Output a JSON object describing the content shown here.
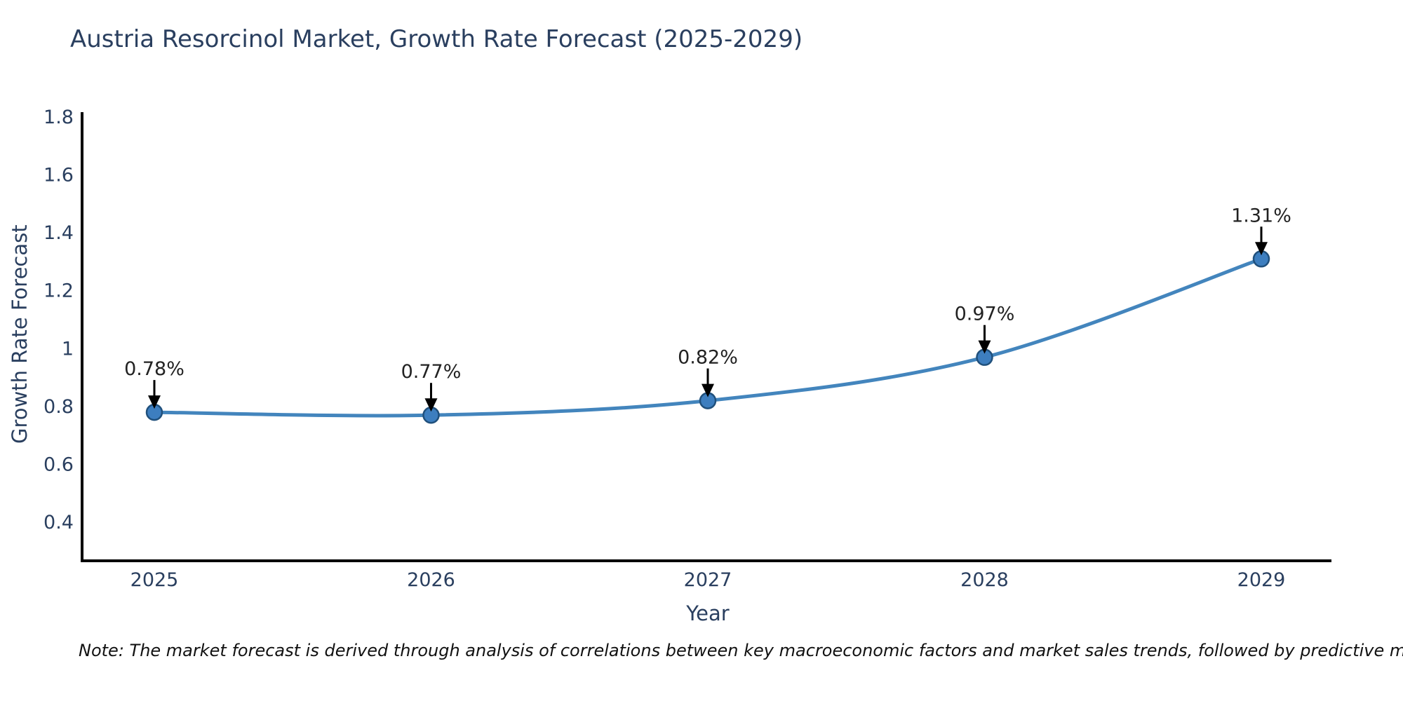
{
  "title": "Austria Resorcinol Market, Growth Rate Forecast (2025-2029)",
  "note": "Note: The market forecast is derived through analysis of correlations between key macroeconomic factors and market sales trends, followed by predictive modeling to project future sales",
  "chart_data": {
    "type": "line",
    "title": "Austria Resorcinol Market, Growth Rate Forecast (2025-2029)",
    "xlabel": "Year",
    "ylabel": "Growth Rate Forecast",
    "categories": [
      "2025",
      "2026",
      "2027",
      "2028",
      "2029"
    ],
    "series": [
      {
        "name": "Growth Rate Forecast",
        "values": [
          0.78,
          0.77,
          0.82,
          0.97,
          1.31
        ]
      }
    ],
    "point_labels": [
      "0.78%",
      "0.77%",
      "0.82%",
      "0.97%",
      "1.31%"
    ],
    "yticks": [
      0.4,
      0.6,
      0.8,
      1,
      1.2,
      1.4,
      1.6,
      1.8
    ],
    "ytick_labels": [
      "0.4",
      "0.6",
      "0.8",
      "1",
      "1.2",
      "1.4",
      "1.6",
      "1.8"
    ],
    "ylim": [
      0.27,
      1.82
    ],
    "line_shape": "spline",
    "grid": false,
    "legend": "none",
    "annotation_arrows": true,
    "colors": {
      "line": "#4385bd",
      "marker_fill": "#3d7ebf",
      "marker_edge": "#20507c",
      "axis_line": "#000000",
      "axis_text": "#2a3f5f",
      "annotation_text": "#222222",
      "annotation_arrow": "#000000",
      "title_text": "#2a3f5f",
      "background": "#ffffff"
    }
  }
}
